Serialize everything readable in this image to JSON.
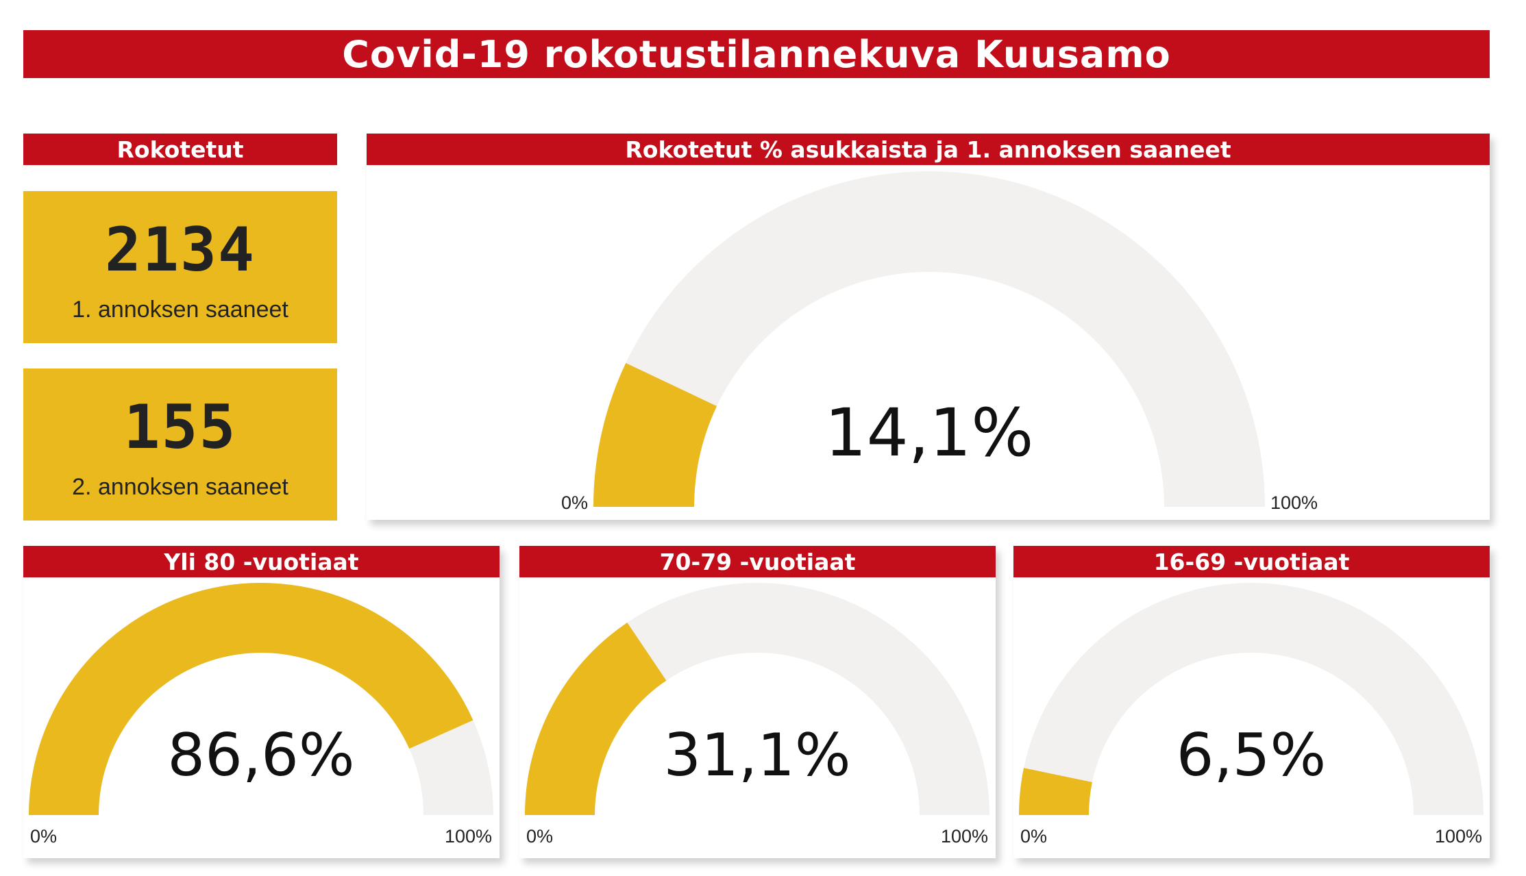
{
  "title": "Covid-19 rokotustilannekuva Kuusamo",
  "kpi_panel": {
    "header": "Rokotetut",
    "cards": [
      {
        "value": "2134",
        "label": "1. annoksen saaneet"
      },
      {
        "value": "155",
        "label": "2. annoksen saaneet"
      }
    ]
  },
  "colors": {
    "header_red": "#c20e1a",
    "gauge_fill": "#e9b91d",
    "gauge_track": "#f2f1f0"
  },
  "chart_data": [
    {
      "type": "gauge",
      "title": "Rokotetut % asukkaista ja 1. annoksen saaneet",
      "value": 14.1,
      "value_label": "14,1%",
      "min_label": "0%",
      "max_label": "100%",
      "range": [
        0,
        100
      ]
    },
    {
      "type": "gauge",
      "title": "Yli 80 -vuotiaat",
      "value": 86.6,
      "value_label": "86,6%",
      "min_label": "0%",
      "max_label": "100%",
      "range": [
        0,
        100
      ]
    },
    {
      "type": "gauge",
      "title": "70-79 -vuotiaat",
      "value": 31.1,
      "value_label": "31,1%",
      "min_label": "0%",
      "max_label": "100%",
      "range": [
        0,
        100
      ]
    },
    {
      "type": "gauge",
      "title": "16-69 -vuotiaat",
      "value": 6.5,
      "value_label": "6,5%",
      "min_label": "0%",
      "max_label": "100%",
      "range": [
        0,
        100
      ]
    }
  ]
}
